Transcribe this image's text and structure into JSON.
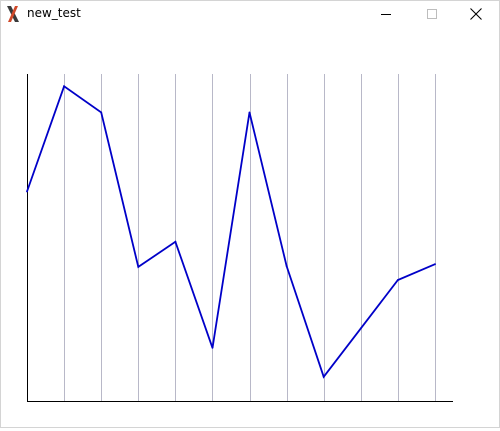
{
  "window": {
    "title": "new_test",
    "app_icon": "x11-icon",
    "controls": [
      "minimize-icon",
      "maximize-icon",
      "close-icon"
    ]
  },
  "chart_data": {
    "type": "line",
    "title": "",
    "xlabel": "",
    "ylabel": "",
    "x": [
      0,
      1,
      2,
      3,
      4,
      5,
      6,
      7,
      8,
      9,
      10,
      11
    ],
    "series": [
      {
        "values": [
          225,
          338,
          310,
          144,
          171,
          57,
          310,
          145,
          26,
          78,
          130,
          147
        ],
        "color": "#0000c8"
      }
    ],
    "ylim": [
      0,
      362
    ],
    "vertical_grid": true,
    "grid_color": "#b8b8c8",
    "axis_color": "#000000"
  }
}
